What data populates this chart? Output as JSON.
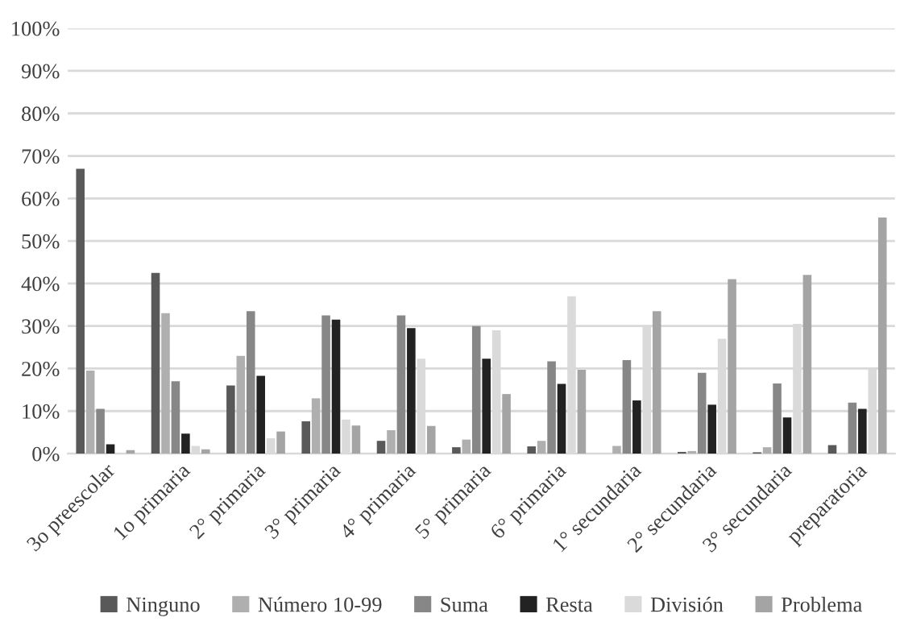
{
  "chart_data": {
    "type": "bar",
    "categories": [
      "3o preescolar",
      "1o primaria",
      "2° primaria",
      "3° primaria",
      "4° primaria",
      "5° primaria",
      "6° primaria",
      "1° secundaria",
      "2° secundaria",
      "3° secundaria",
      "preparatoria"
    ],
    "series": [
      {
        "name": "Ninguno",
        "color": "#595959",
        "values": [
          67,
          42.5,
          16,
          7.6,
          3,
          1.5,
          1.7,
          0,
          0.4,
          0.3,
          2
        ]
      },
      {
        "name": "Número 10-99",
        "color": "#afafaf",
        "values": [
          19.5,
          33,
          23,
          13,
          5.5,
          3.3,
          3,
          1.8,
          0.6,
          1.5,
          0
        ]
      },
      {
        "name": "Suma",
        "color": "#878787",
        "values": [
          10.5,
          17,
          33.5,
          32.5,
          32.5,
          30,
          21.7,
          22,
          19,
          16.5,
          12
        ]
      },
      {
        "name": "Resta",
        "color": "#222222",
        "values": [
          2.2,
          4.7,
          18.3,
          31.5,
          29.5,
          22.3,
          16.4,
          12.5,
          11.5,
          8.5,
          10.5
        ]
      },
      {
        "name": "División",
        "color": "#dadada",
        "values": [
          0.2,
          1.8,
          3.6,
          8,
          22.3,
          29,
          37,
          30,
          27,
          30.5,
          20
        ]
      },
      {
        "name": "Problema",
        "color": "#a4a4a4",
        "values": [
          0.8,
          1,
          5.2,
          6.6,
          6.5,
          14,
          19.7,
          33.5,
          41,
          42,
          55.5
        ]
      }
    ],
    "ylim": [
      0,
      100
    ],
    "yticks": [
      {
        "value": 0,
        "label": "0%"
      },
      {
        "value": 10,
        "label": "10%"
      },
      {
        "value": 20,
        "label": "20%"
      },
      {
        "value": 30,
        "label": "30%"
      },
      {
        "value": 40,
        "label": "40%"
      },
      {
        "value": 50,
        "label": "50%"
      },
      {
        "value": 60,
        "label": "60%"
      },
      {
        "value": 70,
        "label": "70%"
      },
      {
        "value": 80,
        "label": "80%"
      },
      {
        "value": 90,
        "label": "90%"
      },
      {
        "value": 100,
        "label": "100%"
      }
    ],
    "grid": "y",
    "legend": "bottom"
  }
}
